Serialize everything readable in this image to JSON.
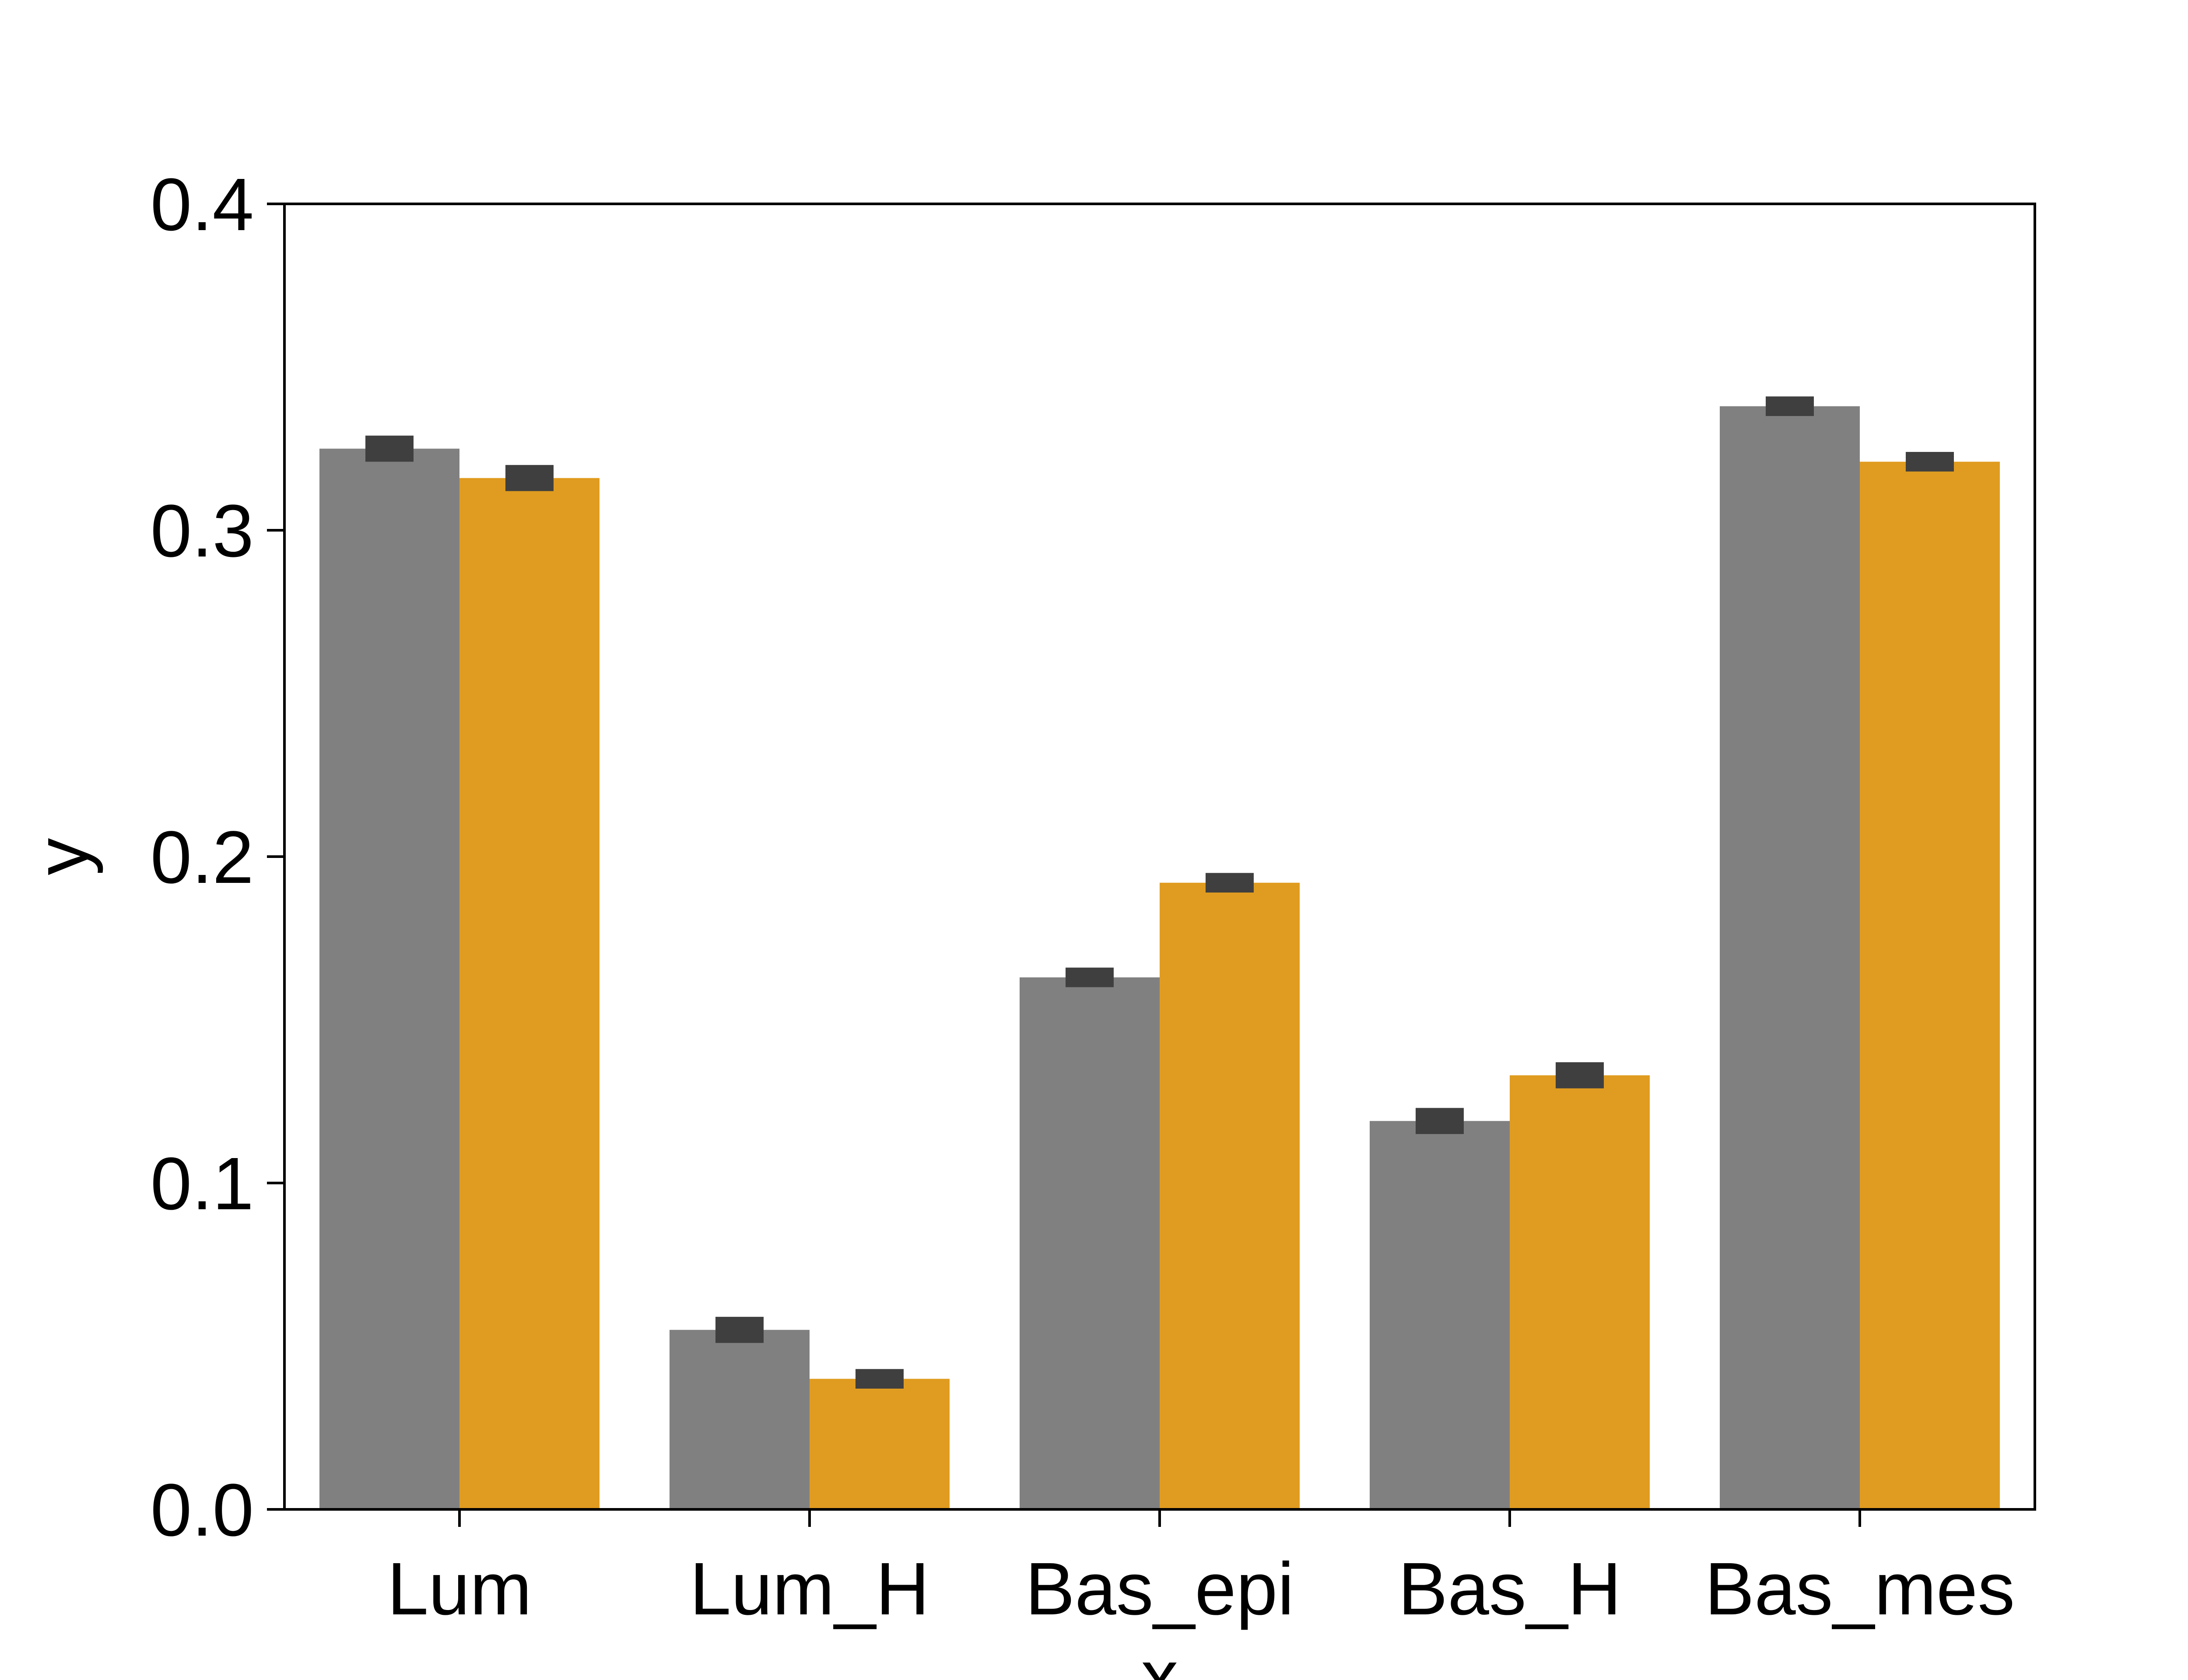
{
  "chart_data": {
    "type": "bar",
    "title": "",
    "xlabel": "x",
    "ylabel": "y",
    "ylim": [
      0,
      0.4
    ],
    "yticks": [
      "0.0",
      "0.1",
      "0.2",
      "0.3",
      "0.4"
    ],
    "categories": [
      "Lum",
      "Lum_H",
      "Bas_epi",
      "Bas_H",
      "Bas_mes"
    ],
    "series": [
      {
        "color": "#808080",
        "values": [
          0.325,
          0.055,
          0.163,
          0.119,
          0.338
        ],
        "error": [
          0.004,
          0.004,
          0.003,
          0.004,
          0.003
        ]
      },
      {
        "color": "#e09c20",
        "values": [
          0.316,
          0.04,
          0.192,
          0.133,
          0.321
        ],
        "error": [
          0.004,
          0.003,
          0.003,
          0.004,
          0.003
        ]
      }
    ],
    "error_bar_color": "#3f3f3f",
    "legend": "none",
    "grid": false
  }
}
